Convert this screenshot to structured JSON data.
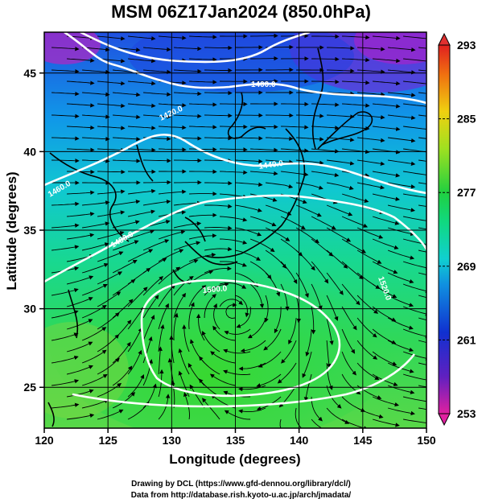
{
  "title": "MSM 06Z17Jan2024 (850.0hPa)",
  "map": {
    "xlabel": "Longitude (degrees)",
    "ylabel": "Latitude  (degrees)",
    "x_ticks": [
      "120",
      "125",
      "130",
      "135",
      "140",
      "145",
      "150"
    ],
    "y_ticks": [
      "25",
      "30",
      "35",
      "40",
      "45"
    ],
    "xlim": [
      120,
      150
    ],
    "ylim": [
      22.4,
      47.6
    ],
    "contour_labels": [
      "1400.0",
      "1420.0",
      "1440.0",
      "1460.0",
      "1480.0",
      "1500.0",
      "1520.0"
    ],
    "low_center": [
      134.8,
      29.8
    ],
    "colors": {
      "cold": "#2a4fe0",
      "mid": "#12d8c8",
      "warm": "#20d860",
      "hot": "#a8e030",
      "contour": "#ffffff"
    }
  },
  "colorbar": {
    "ticks": [
      "293",
      "285",
      "277",
      "269",
      "261",
      "253"
    ],
    "min": 253,
    "max": 293
  },
  "credits": {
    "line1": "Drawing by DCL (https://www.gfd-dennou.org/library/dcl/)",
    "line2": "Data from http://database.rish.kyoto-u.ac.jp/arch/jmadata/"
  }
}
